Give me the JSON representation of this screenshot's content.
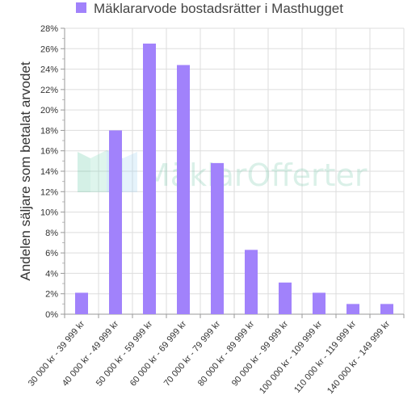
{
  "chart_data": {
    "type": "bar",
    "categories": [
      "30 000 kr - 39 999 kr",
      "40 000 kr - 49 999 kr",
      "50 000 kr - 59 999 kr",
      "60 000 kr - 69 999 kr",
      "70 000 kr - 79 999 kr",
      "80 000 kr - 89 999 kr",
      "90 000 kr - 99 999 kr",
      "100 000 kr - 109 999 kr",
      "110 000 kr - 119 999 kr",
      "140 000 kr - 149 999 kr"
    ],
    "series": [
      {
        "name": "Mäklararvode bostadsrätter i Masthugget",
        "values": [
          2.1,
          18.0,
          26.5,
          24.4,
          14.8,
          6.3,
          3.1,
          2.1,
          1.0,
          1.0
        ],
        "color": "#a182fb"
      }
    ],
    "ylabel": "Andelen säljare som betalat arvodet",
    "xlabel": "",
    "ylim": [
      0,
      28
    ],
    "yticks": [
      "0%",
      "2%",
      "4%",
      "6%",
      "8%",
      "10%",
      "12%",
      "14%",
      "16%",
      "18%",
      "20%",
      "22%",
      "24%",
      "26%",
      "28%"
    ],
    "grid": true,
    "legend": "top"
  },
  "watermark": {
    "text": "MäklarOfferter"
  }
}
